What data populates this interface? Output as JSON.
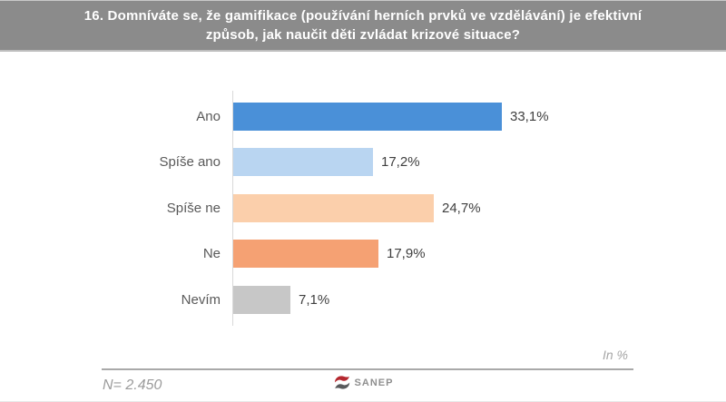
{
  "header": {
    "title": "16. Domníváte se, že gamifikace (používání herních prvků ve vzdělávání) je efektivní způsob, jak naučit děti zvládat krizové situace?"
  },
  "chart_data": {
    "type": "bar",
    "orientation": "horizontal",
    "title": "16. Domníváte se, že gamifikace (používání herních prvků ve vzdělávání) je efektivní způsob, jak naučit děti zvládat krizové situace?",
    "categories": [
      "Ano",
      "Spíše ano",
      "Spíše ne",
      "Ne",
      "Nevím"
    ],
    "values": [
      33.1,
      17.2,
      24.7,
      17.9,
      7.1
    ],
    "value_labels": [
      "33,1%",
      "17,2%",
      "24,7%",
      "17,9%",
      "7,1%"
    ],
    "bar_colors": [
      "#4a90d8",
      "#b9d5f1",
      "#fbcfab",
      "#f5a173",
      "#c7c7c7"
    ],
    "unit_note": "In %",
    "xlabel": "",
    "ylabel": "",
    "grid": false,
    "legend": false
  },
  "footer": {
    "sample_size": "N= 2.450",
    "logo_text": "SANEP"
  },
  "colors": {
    "header_bg": "#8b8b8b",
    "header_text": "#ffffff",
    "category_text": "#595959",
    "value_text": "#3f3f3f",
    "note_text": "#a6a6a6",
    "logo_red": "#b5282f",
    "logo_gray": "#58595b"
  }
}
